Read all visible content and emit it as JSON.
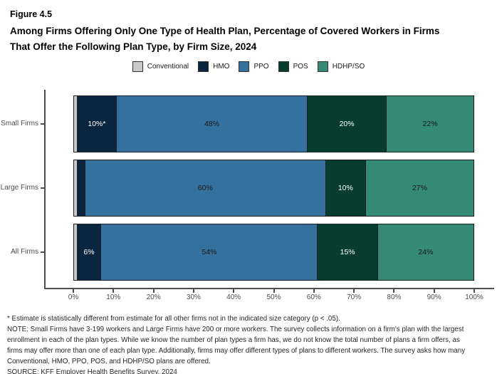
{
  "figure_label": "Figure 4.5",
  "title_line1": "Among Firms Offering Only One Type of Health Plan, Percentage of Covered Workers in Firms",
  "title_line2": "That Offer the Following Plan Type, by Firm Size, 2024",
  "colors": {
    "conventional": "#c9c9c9",
    "hmo": "#0a2540",
    "ppo": "#35719e",
    "pos": "#063d2f",
    "hdhp_so": "#358a76",
    "axis": "#4d4d4d",
    "segment_border": "#1f1f1f"
  },
  "chart_data": {
    "type": "bar",
    "orientation": "horizontal",
    "stacked": true,
    "title": "Among Firms Offering Only One Type of Health Plan, Percentage of Covered Workers in Firms That Offer the Following Plan Type, by Firm Size, 2024",
    "categories": [
      "Small Firms",
      "Large Firms",
      "All Firms"
    ],
    "series": [
      {
        "name": "Conventional",
        "color": "#c9c9c9",
        "label_color": "#1a1a1a",
        "values": [
          1,
          1,
          1
        ],
        "labels": [
          "",
          "",
          ""
        ]
      },
      {
        "name": "HMO",
        "color": "#0a2540",
        "label_color": "#ffffff",
        "values": [
          10,
          2,
          6
        ],
        "labels": [
          "10%*",
          "",
          "6%"
        ]
      },
      {
        "name": "PPO",
        "color": "#35719e",
        "label_color": "#1a1a1a",
        "values": [
          48,
          60,
          54
        ],
        "labels": [
          "48%",
          "60%",
          "54%"
        ]
      },
      {
        "name": "POS",
        "color": "#063d2f",
        "label_color": "#ffffff",
        "values": [
          20,
          10,
          15
        ],
        "labels": [
          "20%",
          "10%",
          "15%"
        ]
      },
      {
        "name": "HDHP/SO",
        "color": "#358a76",
        "label_color": "#1a1a1a",
        "values": [
          22,
          27,
          24
        ],
        "labels": [
          "22%",
          "27%",
          "24%"
        ]
      }
    ],
    "x_ticks": [
      "0%",
      "10%",
      "20%",
      "30%",
      "40%",
      "50%",
      "60%",
      "70%",
      "80%",
      "90%",
      "100%"
    ],
    "xlim": [
      0,
      100
    ],
    "grid": false,
    "legend_position": "top",
    "legend_entries": [
      "Conventional",
      "HMO",
      "PPO",
      "POS",
      "HDHP/SO"
    ]
  },
  "footnotes": {
    "star": "* Estimate is statistically different from estimate for all other firms not in the indicated size category (p < .05).",
    "note": "NOTE: Small Firms have 3-199 workers and Large Firms have 200 or more workers. The survey collects information on a firm's plan with the largest enrollment in each of the plan types. While we know the number of plan types a firm has, we do not know the total number of plans a firm offers, as firms may offer more than one of each plan type. Additionally, firms may offer different types of plans to different workers. The survey asks how many Conventional, HMO, PPO, POS, and HDHP/SO plans are offered.",
    "source": "SOURCE: KFF Employer Health Benefits Survey, 2024"
  }
}
